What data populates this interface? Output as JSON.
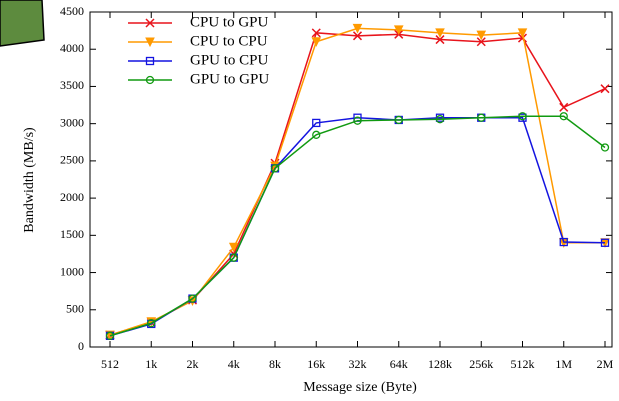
{
  "chart_data": {
    "type": "line",
    "x_label": "Message size (Byte)",
    "y_label": "Bandwidth (MB/s)",
    "categories": [
      "512",
      "1k",
      "2k",
      "4k",
      "8k",
      "16k",
      "32k",
      "64k",
      "128k",
      "256k",
      "512k",
      "1M",
      "2M"
    ],
    "ylim": [
      0,
      4500
    ],
    "yticks": [
      0,
      500,
      1000,
      1500,
      2000,
      2500,
      3000,
      3500,
      4000,
      4500
    ],
    "legend": "upper left",
    "series": [
      {
        "name": "CPU to GPU",
        "color": "#e8141c",
        "marker": "x",
        "values": [
          160,
          330,
          630,
          1250,
          2470,
          4220,
          4180,
          4200,
          4130,
          4100,
          4150,
          3220,
          3470
        ]
      },
      {
        "name": "CPU to CPU",
        "color": "#ff9a00",
        "marker": "triangle-down",
        "values": [
          160,
          340,
          620,
          1340,
          2430,
          4100,
          4280,
          4260,
          4220,
          4190,
          4220,
          1400,
          1400
        ]
      },
      {
        "name": "GPU to CPU",
        "color": "#1414e0",
        "marker": "square",
        "values": [
          150,
          310,
          650,
          1200,
          2400,
          3010,
          3080,
          3050,
          3080,
          3080,
          3080,
          1410,
          1400
        ]
      },
      {
        "name": "GPU to GPU",
        "color": "#119a11",
        "marker": "circle",
        "values": [
          150,
          320,
          650,
          1200,
          2400,
          2850,
          3040,
          3050,
          3060,
          3080,
          3100,
          3100,
          2680
        ]
      }
    ]
  }
}
